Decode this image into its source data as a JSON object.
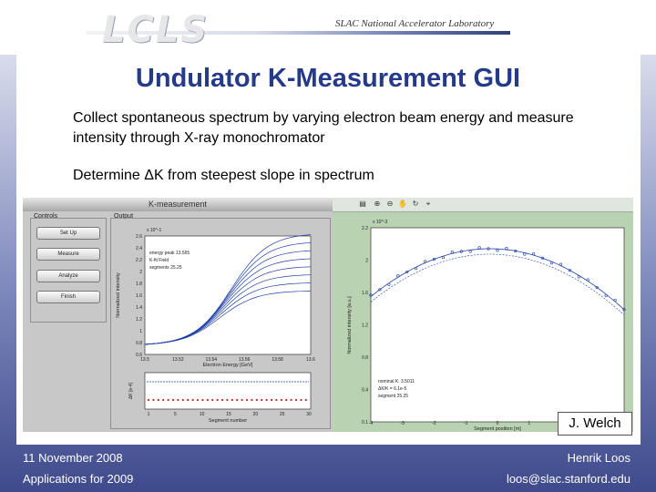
{
  "header": {
    "logo": "LCLS",
    "lab_name": "SLAC National Accelerator Laboratory"
  },
  "slide": {
    "title": "Undulator K-Measurement GUI",
    "bullets": [
      "Collect spontaneous spectrum by varying electron beam energy and measure intensity through X-ray monochromator",
      "Determine ΔK from steepest slope in spectrum"
    ],
    "credit": "J. Welch"
  },
  "footer": {
    "date": "11 November 2008",
    "event": "Applications for 2009",
    "author": "Henrik Loos",
    "email": "loos@slac.stanford.edu"
  },
  "gui": {
    "window_title": "K-measurement",
    "controls_label": "Controls",
    "output_label": "Output",
    "buttons": [
      "Set Up",
      "Measure",
      "Analyze",
      "Finish"
    ],
    "spectrum": {
      "xlabel": "Electron Energy [GeV]",
      "ylabel": "Normalized intensity",
      "x_ticks": [
        "13.5",
        "13.52",
        "13.54",
        "13.56",
        "13.58",
        "13.6"
      ],
      "y_ticks": [
        "0.6",
        "0.8",
        "1",
        "1.2",
        "1.4",
        "1.6",
        "1.8",
        "2",
        "2.2",
        "2.4",
        "2.6"
      ],
      "exp_label": "x 10^-1",
      "legend": [
        "energy peak 13.565",
        "K-fit Field",
        "segments 25.25"
      ]
    },
    "deltak": {
      "xlabel": "Segment number",
      "ylabel": "ΔK [e-4]",
      "x_ticks": [
        "1",
        "5",
        "10",
        "15",
        "20",
        "25",
        "30"
      ]
    },
    "fit_plot": {
      "xlabel": "Segment position [m]",
      "ylabel": "Normalized intensity [a.u.]",
      "exp_label": "x 10^-3",
      "x_ticks": [
        "-4",
        "-3",
        "-2",
        "-1",
        "0",
        "1",
        "2",
        "3",
        "4"
      ],
      "y_ticks": [
        "0.1",
        "0.4",
        "0.8",
        "1.2",
        "1.6",
        "2",
        "2.2"
      ],
      "legend": [
        "nominal K: 3.5011",
        "ΔK/K = 6.1e-5",
        "segment 25.25"
      ]
    }
  },
  "colors": {
    "title": "#253b8a",
    "frame_top": "#d9dcec",
    "frame_bottom": "#3f4a8c",
    "curve": "#1f3fa8",
    "marker": "#cc2222",
    "plot_bg": "#b9d2b2"
  },
  "icons": [
    "print-icon",
    "zoom-in-icon",
    "zoom-out-icon",
    "pan-icon",
    "rotate-icon",
    "datacursor-icon"
  ]
}
